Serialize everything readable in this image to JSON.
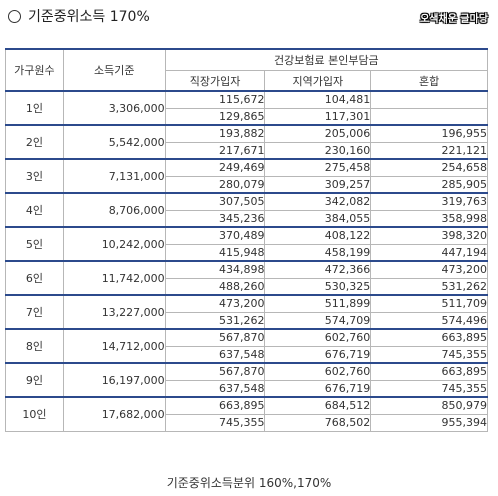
{
  "title": {
    "text": "기준중위소득 170%"
  },
  "logo": {
    "text": "오색채운 글마당"
  },
  "table": {
    "headers": {
      "household": "가구원수",
      "income": "소득기준",
      "group": "건강보험료 본인부담금",
      "workplace": "직장가입자",
      "regional": "지역가입자",
      "mixed": "혼합"
    },
    "rows": [
      {
        "hh": "1인",
        "income": "3,306,000",
        "r1": [
          "115,672",
          "104,481",
          ""
        ],
        "r2": [
          "129,865",
          "117,301",
          ""
        ]
      },
      {
        "hh": "2인",
        "income": "5,542,000",
        "r1": [
          "193,882",
          "205,006",
          "196,955"
        ],
        "r2": [
          "217,671",
          "230,160",
          "221,121"
        ]
      },
      {
        "hh": "3인",
        "income": "7,131,000",
        "r1": [
          "249,469",
          "275,458",
          "254,658"
        ],
        "r2": [
          "280,079",
          "309,257",
          "285,905"
        ]
      },
      {
        "hh": "4인",
        "income": "8,706,000",
        "r1": [
          "307,505",
          "342,082",
          "319,763"
        ],
        "r2": [
          "345,236",
          "384,055",
          "358,998"
        ]
      },
      {
        "hh": "5인",
        "income": "10,242,000",
        "r1": [
          "370,489",
          "408,122",
          "398,320"
        ],
        "r2": [
          "415,948",
          "458,199",
          "447,194"
        ]
      },
      {
        "hh": "6인",
        "income": "11,742,000",
        "r1": [
          "434,898",
          "472,366",
          "473,200"
        ],
        "r2": [
          "488,260",
          "530,325",
          "531,262"
        ]
      },
      {
        "hh": "7인",
        "income": "13,227,000",
        "r1": [
          "473,200",
          "511,899",
          "511,709"
        ],
        "r2": [
          "531,262",
          "574,709",
          "574,496"
        ]
      },
      {
        "hh": "8인",
        "income": "14,712,000",
        "r1": [
          "567,870",
          "602,760",
          "663,895"
        ],
        "r2": [
          "637,548",
          "676,719",
          "745,355"
        ]
      },
      {
        "hh": "9인",
        "income": "16,197,000",
        "r1": [
          "567,870",
          "602,760",
          "663,895"
        ],
        "r2": [
          "637,548",
          "676,719",
          "745,355"
        ]
      },
      {
        "hh": "10인",
        "income": "17,682,000",
        "r1": [
          "663,895",
          "684,512",
          "850,979"
        ],
        "r2": [
          "745,355",
          "768,502",
          "955,394"
        ]
      }
    ]
  },
  "caption": {
    "text": "기준중위소득분위 160%,170%"
  }
}
